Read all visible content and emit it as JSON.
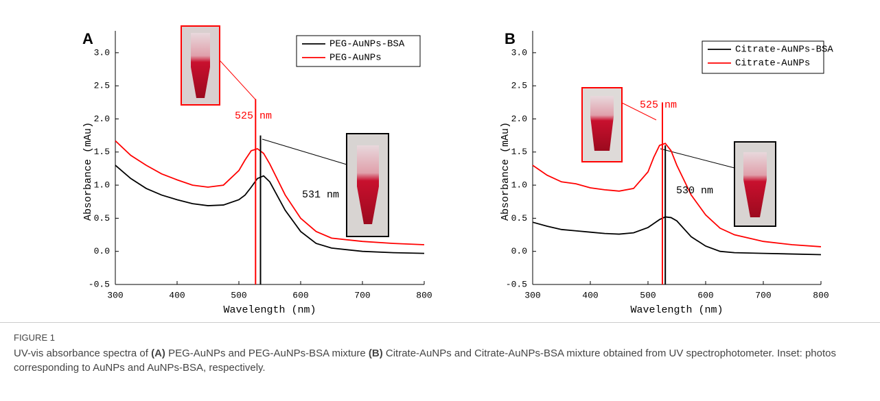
{
  "chart_data": [
    {
      "type": "line",
      "label": "A",
      "x_label": "Wavelength (nm)",
      "y_label": "Absorbance (mAu)",
      "x": [
        300,
        325,
        350,
        375,
        400,
        425,
        450,
        475,
        500,
        510,
        520,
        530,
        540,
        550,
        575,
        600,
        625,
        650,
        700,
        750,
        800
      ],
      "series": [
        {
          "name": "PEG-AuNPs-BSA",
          "color": "#000000",
          "values": [
            1.3,
            1.1,
            0.95,
            0.85,
            0.78,
            0.72,
            0.69,
            0.7,
            0.78,
            0.85,
            0.97,
            1.1,
            1.14,
            1.05,
            0.62,
            0.3,
            0.12,
            0.05,
            0.0,
            -0.02,
            -0.03
          ]
        },
        {
          "name": "PEG-AuNPs",
          "color": "#ff0000",
          "values": [
            1.67,
            1.45,
            1.3,
            1.17,
            1.08,
            1.0,
            0.97,
            1.0,
            1.22,
            1.38,
            1.52,
            1.55,
            1.48,
            1.32,
            0.85,
            0.5,
            0.3,
            0.2,
            0.15,
            0.12,
            0.1
          ]
        }
      ],
      "markers": [
        {
          "x": 527,
          "y": 2.3,
          "color": "#ff0000"
        },
        {
          "x": 535,
          "y": 1.75,
          "color": "#000000"
        }
      ],
      "annotations": [
        {
          "text": "525 nm",
          "color": "#ff0000"
        },
        {
          "text": "531 nm",
          "color": "#000000"
        }
      ],
      "xlim": [
        300,
        800
      ],
      "xticks": [
        300,
        400,
        500,
        600,
        700,
        800
      ],
      "ylim": [
        -0.5,
        3.33
      ],
      "yticks": [
        {
          "value": -0.5,
          "label": "-0.5"
        },
        {
          "value": 0,
          "label": "0.0"
        },
        {
          "value": 0.5,
          "label": "0.5"
        },
        {
          "value": 1,
          "label": "1.0"
        },
        {
          "value": 1.5,
          "label": "1.5"
        },
        {
          "value": 2,
          "label": "2.0"
        },
        {
          "value": 2.5,
          "label": "2.5"
        },
        {
          "value": 3,
          "label": "3.0"
        }
      ]
    },
    {
      "type": "line",
      "label": "B",
      "x_label": "Wavelength (nm)",
      "y_label": "Absorbance (mAu)",
      "x": [
        300,
        325,
        350,
        375,
        400,
        425,
        450,
        475,
        500,
        510,
        520,
        530,
        540,
        550,
        575,
        600,
        625,
        650,
        700,
        750,
        800
      ],
      "series": [
        {
          "name": "Citrate-AuNPs-BSA",
          "color": "#000000",
          "values": [
            0.44,
            0.38,
            0.33,
            0.31,
            0.29,
            0.27,
            0.26,
            0.28,
            0.36,
            0.42,
            0.48,
            0.52,
            0.51,
            0.46,
            0.22,
            0.08,
            0.0,
            -0.02,
            -0.03,
            -0.04,
            -0.05
          ]
        },
        {
          "name": "Citrate-AuNPs",
          "color": "#ff0000",
          "values": [
            1.3,
            1.15,
            1.05,
            1.02,
            0.96,
            0.93,
            0.91,
            0.95,
            1.2,
            1.42,
            1.6,
            1.63,
            1.52,
            1.3,
            0.85,
            0.55,
            0.35,
            0.25,
            0.15,
            0.1,
            0.07
          ]
        }
      ],
      "markers": [
        {
          "x": 525,
          "y": 2.25,
          "color": "#ff0000"
        },
        {
          "x": 530,
          "y": 1.6,
          "color": "#000000"
        }
      ],
      "annotations": [
        {
          "text": "525 nm",
          "color": "#ff0000"
        },
        {
          "text": "530 nm",
          "color": "#000000"
        }
      ],
      "xlim": [
        300,
        800
      ],
      "xticks": [
        300,
        400,
        500,
        600,
        700,
        800
      ],
      "ylim": [
        -0.5,
        3.33
      ],
      "yticks": [
        {
          "value": -0.5,
          "label": "-0.5"
        },
        {
          "value": 0,
          "label": "0.0"
        },
        {
          "value": 0.5,
          "label": "0.5"
        },
        {
          "value": 1,
          "label": "1.0"
        },
        {
          "value": 1.5,
          "label": "1.5"
        },
        {
          "value": 2,
          "label": "2.0"
        },
        {
          "value": 2.5,
          "label": "2.5"
        },
        {
          "value": 3,
          "label": "3.0"
        }
      ]
    }
  ],
  "caption": {
    "label": "FIGURE 1",
    "parts": [
      "UV-vis absorbance spectra of ",
      "(A)",
      " PEG-AuNPs and PEG-AuNPs-BSA mixture ",
      "(B)",
      " Citrate-AuNPs and Citrate-AuNPs-BSA mixture obtained from UV spectrophotometer. Inset: photos corresponding to AuNPs and AuNPs-BSA, respectively."
    ]
  }
}
